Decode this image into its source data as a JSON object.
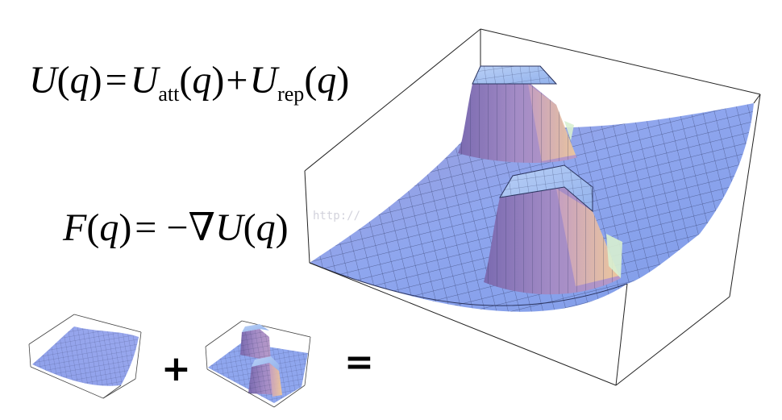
{
  "equations": {
    "potential": {
      "U": "U",
      "q": "q",
      "equals": "=",
      "U_att": "U",
      "att": "att",
      "plus": "+",
      "U_rep": "U",
      "rep": "rep"
    },
    "force": {
      "F": "F",
      "q": "q",
      "rhs": "= −∇",
      "U": "U"
    }
  },
  "operators": {
    "plus": "+",
    "equals": "="
  },
  "watermark": "http://",
  "colors": {
    "surface_blue": "#8fa6ee",
    "surface_purple": "#9c86c4",
    "surface_peach": "#f0c79a",
    "top_cyan": "#a9c6f2",
    "mesh": "#2c3560",
    "box": "#222222"
  }
}
